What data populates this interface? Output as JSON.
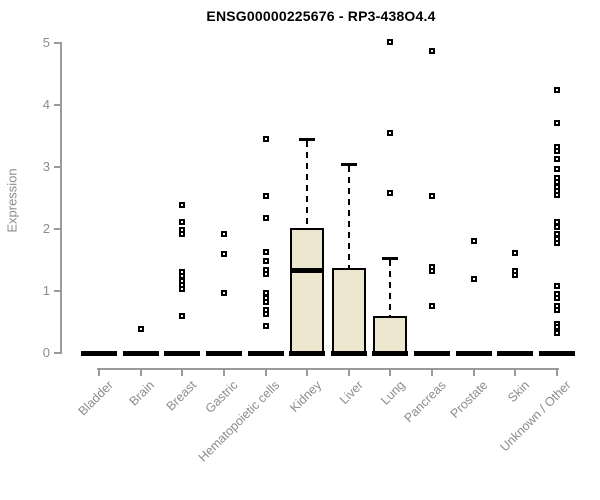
{
  "chart_data": {
    "type": "boxplot",
    "title": "ENSG00000225676 - RP3-438O4.4",
    "ylabel": "Expression",
    "xlabel": "",
    "ylim": [
      0,
      5
    ],
    "yticks": [
      0,
      1,
      2,
      3,
      4,
      5
    ],
    "grid": false,
    "legend": "none",
    "categories": [
      "Bladder",
      "Brain",
      "Breast",
      "Gastric",
      "Hematopoietic cells",
      "Kidney",
      "Liver",
      "Lung",
      "Pancreas",
      "Prostate",
      "Skin",
      "Unknown / Other"
    ],
    "boxes": [
      {
        "category": "Bladder",
        "q1": 0,
        "median": 0,
        "q3": 0,
        "whisker_low": 0,
        "whisker_high": 0,
        "outliers": []
      },
      {
        "category": "Brain",
        "q1": 0,
        "median": 0,
        "q3": 0,
        "whisker_low": 0,
        "whisker_high": 0,
        "outliers": [
          0.4
        ]
      },
      {
        "category": "Breast",
        "q1": 0,
        "median": 0,
        "q3": 0,
        "whisker_low": 0,
        "whisker_high": 0,
        "outliers": [
          2.39,
          2.11,
          1.99,
          1.92,
          1.31,
          1.24,
          1.17,
          1.1,
          1.03,
          0.6
        ]
      },
      {
        "category": "Gastric",
        "q1": 0,
        "median": 0,
        "q3": 0,
        "whisker_low": 0,
        "whisker_high": 0,
        "outliers": [
          1.92,
          1.6,
          0.98
        ]
      },
      {
        "category": "Hematopoietic cells",
        "q1": 0,
        "median": 0,
        "q3": 0,
        "whisker_low": 0,
        "whisker_high": 0,
        "outliers": [
          3.45,
          2.54,
          2.18,
          1.64,
          1.49,
          1.35,
          1.28,
          0.97,
          0.9,
          0.83,
          0.7,
          0.63,
          0.44
        ]
      },
      {
        "category": "Kidney",
        "q1": 0,
        "median": 1.33,
        "q3": 2.02,
        "whisker_low": 0,
        "whisker_high": 3.45,
        "outliers": []
      },
      {
        "category": "Liver",
        "q1": 0,
        "median": 0,
        "q3": 1.38,
        "whisker_low": 0,
        "whisker_high": 3.05,
        "outliers": []
      },
      {
        "category": "Lung",
        "q1": 0,
        "median": 0,
        "q3": 0.6,
        "whisker_low": 0,
        "whisker_high": 1.54,
        "outliers": [
          5.02,
          3.56,
          2.58
        ]
      },
      {
        "category": "Pancreas",
        "q1": 0,
        "median": 0,
        "q3": 0,
        "whisker_low": 0,
        "whisker_high": 0,
        "outliers": [
          4.88,
          2.54,
          1.39,
          1.32,
          0.76
        ]
      },
      {
        "category": "Prostate",
        "q1": 0,
        "median": 0,
        "q3": 0,
        "whisker_low": 0,
        "whisker_high": 0,
        "outliers": [
          1.81,
          1.2
        ]
      },
      {
        "category": "Skin",
        "q1": 0,
        "median": 0,
        "q3": 0,
        "whisker_low": 0,
        "whisker_high": 0,
        "outliers": [
          1.61,
          1.33,
          1.26
        ]
      },
      {
        "category": "Unknown / Other",
        "q1": 0,
        "median": 0,
        "q3": 0,
        "whisker_low": 0,
        "whisker_high": 0,
        "outliers": [
          4.25,
          3.71,
          3.33,
          3.27,
          3.13,
          2.97,
          2.82,
          2.76,
          2.69,
          2.62,
          2.55,
          2.11,
          2.04,
          1.92,
          1.85,
          1.78,
          1.09,
          0.95,
          0.89,
          0.76,
          0.7,
          0.48,
          0.43,
          0.32
        ]
      }
    ],
    "colors": {
      "box_fill": "#EDE7CF",
      "box_border": "#000000",
      "median": "#000000",
      "outlier_border": "#000000",
      "axis": "#9a9a9a",
      "tick_label": "#8c8c8c",
      "title": "#000000"
    }
  }
}
